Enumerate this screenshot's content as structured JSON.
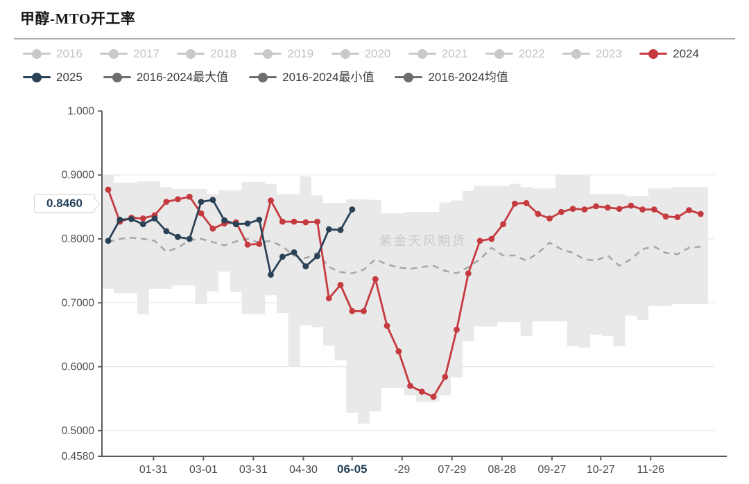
{
  "title": "甲醇-MTO开工率",
  "watermark": "紫金天风期货",
  "callout": {
    "value": "0.8460"
  },
  "colors": {
    "band": "#e7e7e7",
    "grid": "#e0e0e0",
    "axis": "#5a5a5a",
    "tick_text": "#4d4d4d",
    "bold_tick_text": "#24425c",
    "mean_line": "#a8a8a8",
    "red_2024": "#c53a3e",
    "navy_2025": "#2b4256",
    "pale_legend": "#c9c9c9",
    "dark_legend": "#6e6e6e"
  },
  "legend": {
    "row1": [
      {
        "label": "2016",
        "color": "#c9c9c9",
        "state": "pale"
      },
      {
        "label": "2017",
        "color": "#c9c9c9",
        "state": "pale"
      },
      {
        "label": "2018",
        "color": "#c9c9c9",
        "state": "pale"
      },
      {
        "label": "2019",
        "color": "#c9c9c9",
        "state": "pale"
      },
      {
        "label": "2020",
        "color": "#c9c9c9",
        "state": "pale"
      },
      {
        "label": "2021",
        "color": "#c9c9c9",
        "state": "pale"
      },
      {
        "label": "2022",
        "color": "#c9c9c9",
        "state": "pale"
      },
      {
        "label": "2023",
        "color": "#c9c9c9",
        "state": "pale"
      },
      {
        "label": "2024",
        "color": "#c53a3e",
        "state": "active"
      }
    ],
    "row2": [
      {
        "label": "2025",
        "color": "#2b4256",
        "state": "active"
      },
      {
        "label": "2016-2024最大值",
        "color": "#6e6e6e",
        "state": "active"
      },
      {
        "label": "2016-2024最小值",
        "color": "#6e6e6e",
        "state": "active"
      },
      {
        "label": "2016-2024均值",
        "color": "#6e6e6e",
        "state": "active"
      }
    ]
  },
  "chart_data": {
    "type": "line",
    "title": "甲醇-MTO开工率",
    "ylim": [
      0.458,
      1.0
    ],
    "grid": "horizontal",
    "y_ticks": [
      {
        "label": "1.000",
        "value": 1.0
      },
      {
        "label": "0.9000",
        "value": 0.9
      },
      {
        "label": "0.8000",
        "value": 0.8
      },
      {
        "label": "0.7000",
        "value": 0.7
      },
      {
        "label": "0.6000",
        "value": 0.6
      },
      {
        "label": "0.5000",
        "value": 0.5
      },
      {
        "label": "0.4580",
        "value": 0.458
      }
    ],
    "x_ticks": [
      {
        "label": "01-31",
        "week": 3.9,
        "bold": false
      },
      {
        "label": "03-01",
        "week": 8.2,
        "bold": false
      },
      {
        "label": "03-31",
        "week": 12.5,
        "bold": false
      },
      {
        "label": "04-30",
        "week": 16.8,
        "bold": false
      },
      {
        "label": "06-05",
        "week": 21.0,
        "bold": true
      },
      {
        "label": "-29",
        "week": 25.3,
        "bold": false
      },
      {
        "label": "07-29",
        "week": 29.6,
        "bold": false
      },
      {
        "label": "08-28",
        "week": 33.9,
        "bold": false
      },
      {
        "label": "09-27",
        "week": 38.2,
        "bold": false
      },
      {
        "label": "10-27",
        "week": 42.4,
        "bold": false
      },
      {
        "label": "11-26",
        "week": 46.7,
        "bold": false
      }
    ],
    "series": [
      {
        "name": "2016-2024最大值",
        "render": "band-top",
        "values": [
          0.9,
          0.888,
          0.888,
          0.89,
          0.89,
          0.881,
          0.878,
          0.878,
          0.878,
          0.87,
          0.876,
          0.876,
          0.889,
          0.889,
          0.886,
          0.87,
          0.87,
          0.898,
          0.868,
          0.856,
          0.856,
          0.862,
          0.862,
          0.861,
          0.84,
          0.84,
          0.842,
          0.842,
          0.842,
          0.857,
          0.86,
          0.875,
          0.883,
          0.883,
          0.883,
          0.886,
          0.881,
          0.879,
          0.879,
          0.9,
          0.9,
          0.9,
          0.87,
          0.87,
          0.87,
          0.867,
          0.867,
          0.879,
          0.879,
          0.881,
          0.881,
          0.881
        ]
      },
      {
        "name": "2016-2024最小值",
        "render": "band-bottom",
        "values": [
          0.722,
          0.715,
          0.715,
          0.682,
          0.722,
          0.722,
          0.727,
          0.727,
          0.698,
          0.718,
          0.749,
          0.717,
          0.682,
          0.682,
          0.712,
          0.684,
          0.6,
          0.665,
          0.662,
          0.633,
          0.61,
          0.528,
          0.511,
          0.53,
          0.567,
          0.567,
          0.555,
          0.545,
          0.545,
          0.555,
          0.583,
          0.64,
          0.663,
          0.663,
          0.67,
          0.67,
          0.648,
          0.671,
          0.671,
          0.671,
          0.632,
          0.63,
          0.65,
          0.648,
          0.632,
          0.68,
          0.673,
          0.695,
          0.695,
          0.698,
          0.698,
          0.698
        ]
      },
      {
        "name": "2016-2024均值",
        "render": "dashed",
        "color": "#a8a8a8",
        "values": [
          0.795,
          0.8,
          0.802,
          0.8,
          0.797,
          0.78,
          0.786,
          0.798,
          0.8,
          0.795,
          0.79,
          0.796,
          0.8,
          0.794,
          0.797,
          0.788,
          0.774,
          0.77,
          0.778,
          0.756,
          0.748,
          0.746,
          0.752,
          0.768,
          0.76,
          0.755,
          0.753,
          0.756,
          0.758,
          0.75,
          0.746,
          0.756,
          0.768,
          0.786,
          0.774,
          0.774,
          0.766,
          0.778,
          0.794,
          0.784,
          0.778,
          0.768,
          0.766,
          0.774,
          0.758,
          0.768,
          0.784,
          0.788,
          0.778,
          0.776,
          0.786,
          0.788
        ]
      },
      {
        "name": "2024",
        "render": "line-markers",
        "color": "#c53a3e",
        "values": [
          0.877,
          0.827,
          0.833,
          0.832,
          0.837,
          0.858,
          0.862,
          0.866,
          0.84,
          0.816,
          0.824,
          0.826,
          0.791,
          0.792,
          0.86,
          0.827,
          0.827,
          0.826,
          0.827,
          0.707,
          0.728,
          0.687,
          0.687,
          0.737,
          0.664,
          0.624,
          0.57,
          0.561,
          0.553,
          0.584,
          0.658,
          0.746,
          0.797,
          0.8,
          0.823,
          0.855,
          0.856,
          0.839,
          0.832,
          0.842,
          0.847,
          0.846,
          0.851,
          0.849,
          0.847,
          0.852,
          0.846,
          0.846,
          0.835,
          0.834,
          0.845,
          0.839
        ]
      },
      {
        "name": "2025",
        "render": "line-markers",
        "color": "#2b4256",
        "values": [
          0.797,
          0.83,
          0.831,
          0.823,
          0.832,
          0.812,
          0.803,
          0.8,
          0.858,
          0.861,
          0.829,
          0.823,
          0.824,
          0.83,
          0.744,
          0.772,
          0.779,
          0.757,
          0.773,
          0.815,
          0.814,
          0.846
        ],
        "last_value_label": "0.8460"
      }
    ]
  }
}
